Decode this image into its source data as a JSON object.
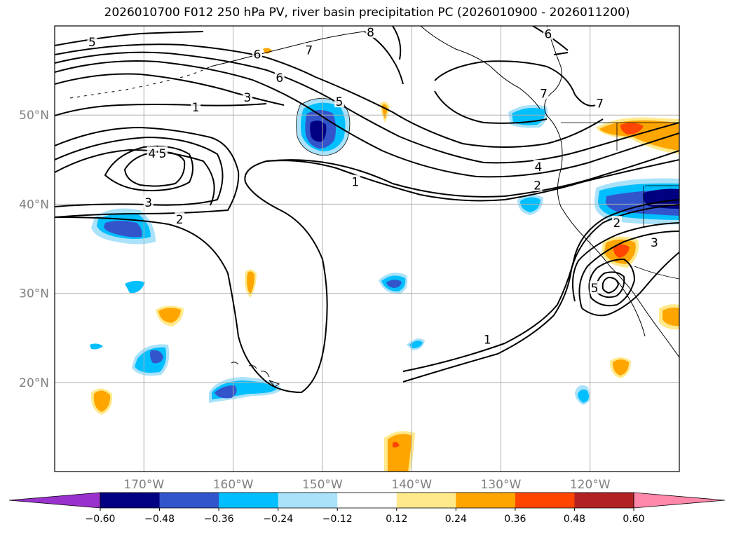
{
  "title": "2026010700 F012 250 hPa PV, river basin precipitation PC (2026010900 - 2026011200)",
  "map": {
    "lon_range": [
      -180,
      -110
    ],
    "lat_range": [
      10,
      60
    ],
    "lat_ticks": [
      {
        "value": 20,
        "label": "20°N"
      },
      {
        "value": 30,
        "label": "30°N"
      },
      {
        "value": 40,
        "label": "40°N"
      },
      {
        "value": 50,
        "label": "50°N"
      }
    ],
    "lon_ticks": [
      {
        "value": -170,
        "label": "170°W"
      },
      {
        "value": -160,
        "label": "160°W"
      },
      {
        "value": -150,
        "label": "150°W"
      },
      {
        "value": -140,
        "label": "140°W"
      },
      {
        "value": -130,
        "label": "130°W"
      },
      {
        "value": -120,
        "label": "120°W"
      }
    ]
  },
  "pv_contour_labels": [
    {
      "text": "5",
      "lon": -175.8,
      "lat": 58.2
    },
    {
      "text": "6",
      "lon": -157.3,
      "lat": 56.8
    },
    {
      "text": "7",
      "lon": -151.5,
      "lat": 57.3
    },
    {
      "text": "8",
      "lon": -144.6,
      "lat": 59.3
    },
    {
      "text": "6",
      "lon": -154.8,
      "lat": 54.2
    },
    {
      "text": "3",
      "lon": -158.4,
      "lat": 52.0
    },
    {
      "text": "5",
      "lon": -148.1,
      "lat": 51.5
    },
    {
      "text": "1",
      "lon": -164.2,
      "lat": 50.9
    },
    {
      "text": "4",
      "lon": -169.1,
      "lat": 45.7
    },
    {
      "text": "5",
      "lon": -167.9,
      "lat": 45.7
    },
    {
      "text": "3",
      "lon": -169.5,
      "lat": 40.2
    },
    {
      "text": "2",
      "lon": -166.0,
      "lat": 38.3
    },
    {
      "text": "1",
      "lon": -146.3,
      "lat": 42.5
    },
    {
      "text": "6",
      "lon": -124.7,
      "lat": 59.1
    },
    {
      "text": "7",
      "lon": -125.2,
      "lat": 52.4
    },
    {
      "text": "7",
      "lon": -118.9,
      "lat": 51.3
    },
    {
      "text": "4",
      "lon": -125.8,
      "lat": 44.2
    },
    {
      "text": "2",
      "lon": -125.9,
      "lat": 42.1
    },
    {
      "text": "2",
      "lon": -117.0,
      "lat": 37.9
    },
    {
      "text": "3",
      "lon": -112.8,
      "lat": 35.7
    },
    {
      "text": "5",
      "lon": -119.5,
      "lat": 30.6
    },
    {
      "text": "1",
      "lon": -131.5,
      "lat": 24.8
    }
  ],
  "colorbar": {
    "levels": [
      -0.6,
      -0.48,
      -0.36,
      -0.24,
      -0.12,
      0.12,
      0.24,
      0.36,
      0.48,
      0.6
    ],
    "tick_labels": [
      "−0.60",
      "−0.48",
      "−0.36",
      "−0.24",
      "−0.12",
      "0.12",
      "0.24",
      "0.36",
      "0.48",
      "0.60"
    ],
    "colors": [
      "#9932cc",
      "#000080",
      "#3355cc",
      "#00bfff",
      "#aae2fa",
      "#ffffff",
      "#ffe98b",
      "#ffa500",
      "#ff4500",
      "#b22222",
      "#ff88aa"
    ],
    "extend": "both"
  },
  "fill_colors": {
    "neg3": "#000080",
    "neg2": "#3355cc",
    "neg1": "#00bfff",
    "neg0": "#aae2fa",
    "pos0": "#ffe98b",
    "pos1": "#ffa500",
    "pos2": "#ff4500"
  }
}
